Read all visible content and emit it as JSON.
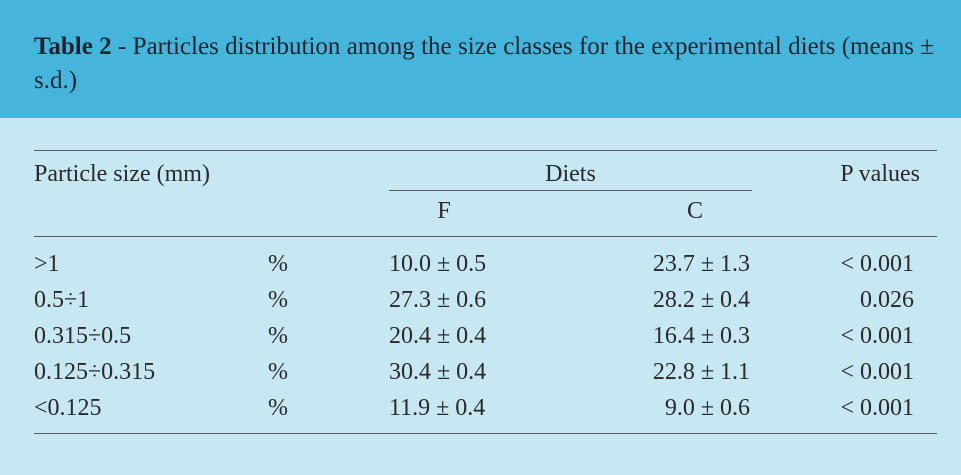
{
  "caption": {
    "label": "Table 2",
    "text": " - Particles distribution among the size classes for the experimental diets (means ± s.d.)"
  },
  "table": {
    "header": {
      "particle_size": "Particle size (mm)",
      "diets": "Diets",
      "diet_f": "F",
      "diet_c": "C",
      "p_values": "P values"
    },
    "rows": [
      {
        "size": ">1",
        "unit": "%",
        "f": "10.0 ± 0.5",
        "c": "23.7 ± 1.3",
        "p": "< 0.001"
      },
      {
        "size": "0.5÷1",
        "unit": "%",
        "f": "27.3 ± 0.6",
        "c": "28.2 ± 0.4",
        "p": "0.026"
      },
      {
        "size": "0.315÷0.5",
        "unit": "%",
        "f": "20.4 ± 0.4",
        "c": "16.4 ± 0.3",
        "p": "< 0.001"
      },
      {
        "size": "0.125÷0.315",
        "unit": "%",
        "f": "30.4 ± 0.4",
        "c": "22.8 ± 1.1",
        "p": "< 0.001"
      },
      {
        "size": "<0.125",
        "unit": "%",
        "f": "11.9 ± 0.4",
        "c": "9.0 ± 0.6",
        "p": "< 0.001"
      }
    ]
  },
  "colors": {
    "header_band": "#45b5dc",
    "background": "#c7e7f2",
    "rule": "#5a5a5a"
  }
}
